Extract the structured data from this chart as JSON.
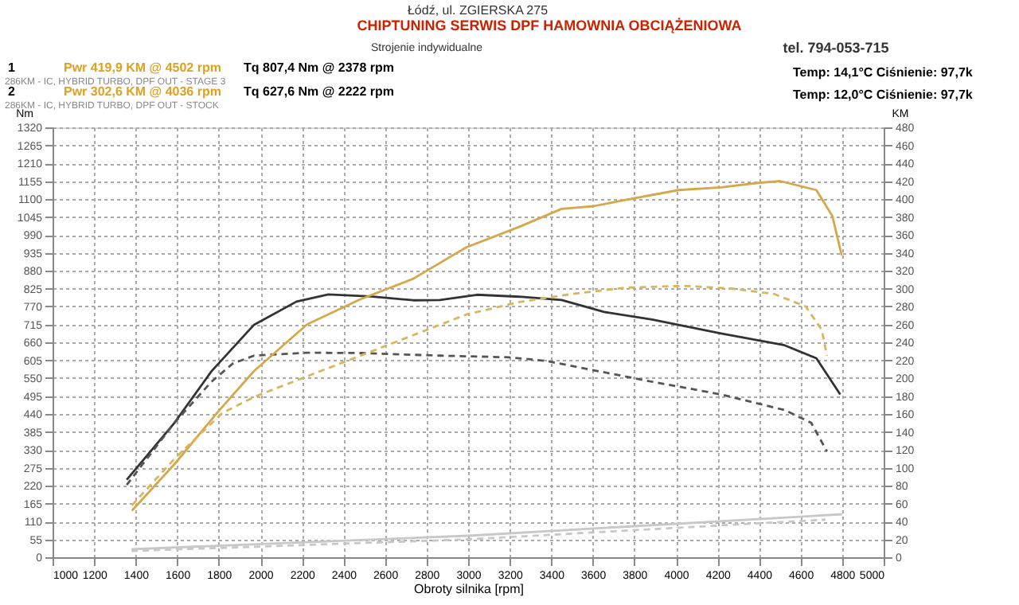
{
  "chart_data": {
    "type": "line",
    "xlabel": "Obroty silnika [rpm]",
    "ylabel": "Nm",
    "y2label": "KM",
    "annotations": [
      "Łódź, ul. ZGIERSKA 275",
      "CHIPTUNING  SERWIS DPF  HAMOWNIA OBCIĄŻENIOWA",
      "tel. 794-053-715",
      "Strojenie indywidualne",
      "1",
      "Pwr 419,9 KM @ 4502 rpm",
      "Tq 807,4 Nm @ 2378 rpm",
      "286KM - IC, HYBRID TURBO, DPF OUT - STAGE 3",
      "2",
      "Pwr 302,6 KM @ 4036 rpm",
      "Tq 627,6 Nm @ 2222 rpm",
      "286KM - IC, HYBRID TURBO, DPF OUT - STOCK",
      "Temp: 14,1°C  Ciśnienie: 97,7k",
      "Temp: 12,0°C  Ciśnienie: 97,7k"
    ],
    "xlim": [
      1000,
      5000
    ],
    "xticks": [
      1000,
      1200,
      1400,
      1600,
      1800,
      2000,
      2200,
      2400,
      2600,
      2800,
      3000,
      3200,
      3400,
      3600,
      3800,
      4000,
      4200,
      4400,
      4600,
      4800,
      5000
    ],
    "ylim": [
      0,
      1320
    ],
    "yticks": [
      0,
      55,
      110,
      165,
      220,
      275,
      330,
      385,
      440,
      495,
      550,
      605,
      660,
      715,
      770,
      825,
      880,
      935,
      990,
      1045,
      1100,
      1155,
      1210,
      1265,
      1320
    ],
    "y2lim": [
      0,
      480
    ],
    "y2ticks": [
      0,
      20,
      40,
      60,
      80,
      100,
      120,
      140,
      160,
      180,
      200,
      220,
      240,
      260,
      280,
      300,
      320,
      340,
      360,
      380,
      400,
      420,
      440,
      460,
      480
    ],
    "grid": true,
    "marker": "none",
    "series": [
      {
        "color": "#333333",
        "line_style": "solid",
        "x": [
          1357,
          1587,
          1765,
          1970,
          2174,
          2327,
          2531,
          2736,
          2864,
          3042,
          3247,
          3450,
          3655,
          3885,
          4217,
          4523,
          4676,
          4791
        ],
        "values": [
          238,
          413,
          571,
          714,
          785,
          807,
          801,
          789,
          790,
          806,
          800,
          790,
          753,
          730,
          687,
          651,
          611,
          500
        ]
      },
      {
        "color": "#d4a84b",
        "line_style": "solid",
        "axis": "y2",
        "x": [
          1382,
          1587,
          1791,
          1970,
          2225,
          2481,
          2736,
          2991,
          3247,
          3450,
          3604,
          3757,
          4013,
          4217,
          4396,
          4502,
          4676,
          4753,
          4798
        ],
        "values": [
          52,
          104,
          161,
          208,
          260,
          288,
          311,
          346,
          369,
          389,
          392,
          399,
          410,
          413,
          418,
          420,
          410,
          381,
          337
        ]
      },
      {
        "color": "#555555",
        "line_style": "dashed",
        "x": [
          1357,
          1587,
          1765,
          1868,
          1970,
          2222,
          2481,
          2864,
          3196,
          3374,
          3630,
          3885,
          4217,
          4523,
          4651,
          4727
        ],
        "values": [
          222,
          413,
          539,
          595,
          619,
          628,
          627,
          619,
          614,
          603,
          571,
          539,
          500,
          452,
          413,
          325
        ]
      },
      {
        "color": "#d9b55e",
        "line_style": "dashed",
        "axis": "y2",
        "x": [
          1382,
          1587,
          1817,
          1970,
          2225,
          2481,
          2736,
          2991,
          3247,
          3502,
          3757,
          4036,
          4268,
          4472,
          4625,
          4702,
          4727
        ],
        "values": [
          58,
          110,
          161,
          179,
          202,
          225,
          248,
          271,
          285,
          294,
          301,
          303,
          300,
          294,
          280,
          254,
          225
        ]
      },
      {
        "color": "#c8c8c8",
        "line_style": "solid",
        "axis": "y2",
        "x": [
          1380,
          3000,
          4800
        ],
        "values": [
          9,
          24,
          48
        ]
      },
      {
        "color": "#c8c8c8",
        "line_style": "dashed",
        "axis": "y2",
        "x": [
          1380,
          3000,
          4720
        ],
        "values": [
          7,
          20,
          42
        ]
      }
    ]
  }
}
